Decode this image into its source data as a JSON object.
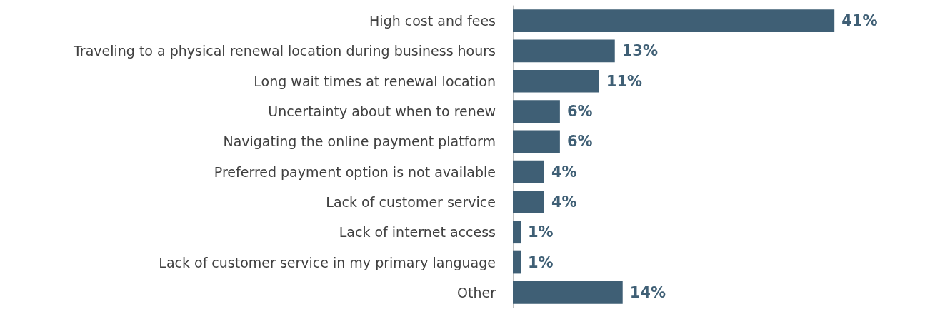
{
  "chart_data": {
    "type": "bar",
    "orientation": "horizontal",
    "categories": [
      "High cost and fees",
      "Traveling to a physical renewal location during business hours",
      "Long wait times at renewal location",
      "Uncertainty about when to renew",
      "Navigating the online payment platform",
      "Preferred payment option is not available",
      "Lack of customer service",
      "Lack of internet access",
      "Lack of customer service in my primary language",
      "Other"
    ],
    "values": [
      41,
      13,
      11,
      6,
      6,
      4,
      4,
      1,
      1,
      14
    ],
    "value_labels": [
      "41%",
      "13%",
      "11%",
      "6%",
      "6%",
      "4%",
      "4%",
      "1%",
      "1%",
      "14%"
    ],
    "color": "#3f5f75",
    "tick_labels": "y",
    "grid": false
  }
}
